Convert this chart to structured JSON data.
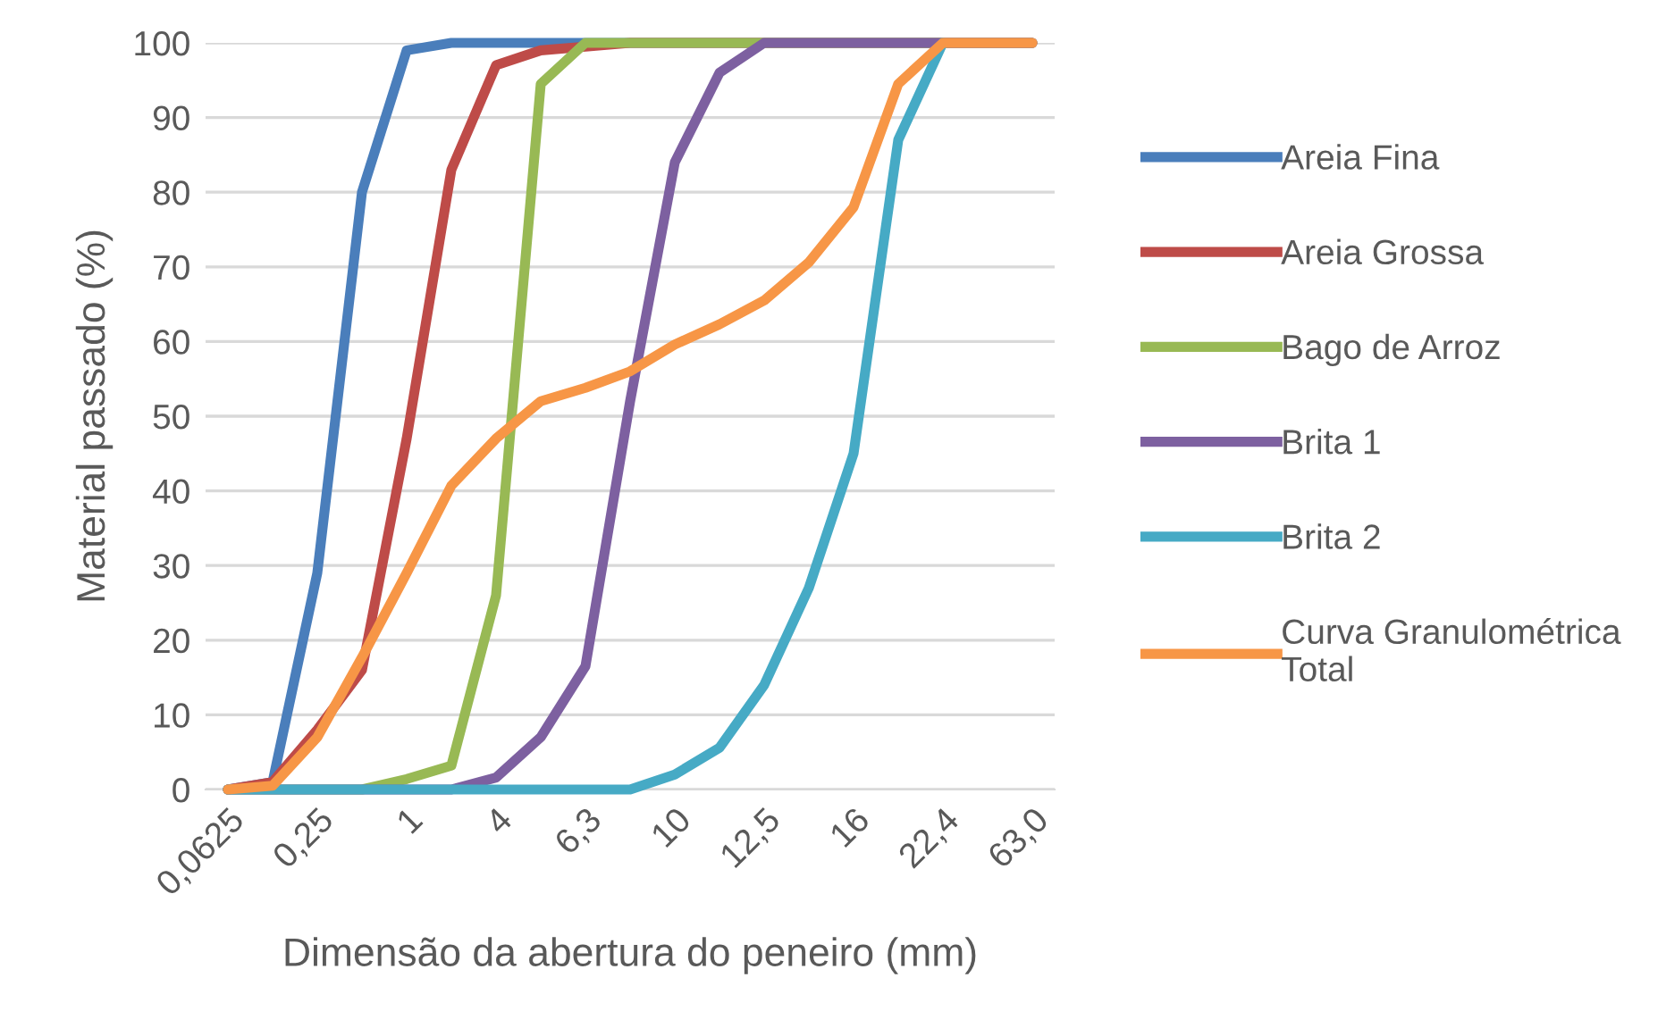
{
  "chart_data": {
    "type": "line",
    "xlabel": "Dimensão da abertura do peneiro (mm)",
    "ylabel": "Material passado (%)",
    "categories": [
      "0,0625",
      null,
      "0,25",
      null,
      "1",
      null,
      "4",
      null,
      "6,3",
      null,
      "10",
      null,
      "12,5",
      null,
      "16",
      null,
      "22,4",
      null,
      "63,0"
    ],
    "ylim": [
      0,
      100
    ],
    "yticks": [
      0,
      10,
      20,
      30,
      40,
      50,
      60,
      70,
      80,
      90,
      100
    ],
    "grid": "y",
    "legend": "right",
    "marker": "none",
    "line_style": "solid",
    "series": [
      {
        "name": "Areia Fina",
        "color": "#4a7ebb",
        "values": [
          0,
          1,
          29,
          80,
          99,
          100,
          100,
          100,
          100,
          100,
          100,
          100,
          100,
          100,
          100,
          100,
          100,
          null,
          null
        ]
      },
      {
        "name": "Areia Grossa",
        "color": "#be4b48",
        "values": [
          0,
          1,
          8,
          16,
          47,
          83,
          97,
          99,
          99.5,
          100,
          100,
          100,
          100,
          100,
          100,
          100,
          100,
          100,
          100
        ]
      },
      {
        "name": "Bago de Arroz",
        "color": "#98b954",
        "values": [
          0,
          0,
          0,
          0,
          1.4,
          3.2,
          26,
          94.5,
          100,
          100,
          100,
          100,
          100,
          100,
          100,
          100,
          100,
          100,
          100
        ]
      },
      {
        "name": "Brita 1",
        "color": "#7d60a0",
        "values": [
          0,
          0,
          0,
          0,
          0,
          0,
          1.6,
          7,
          16.5,
          52,
          84,
          96,
          100,
          100,
          100,
          100,
          100,
          100,
          100
        ]
      },
      {
        "name": "Brita 2",
        "color": "#46aac5",
        "values": [
          0,
          0,
          0,
          0,
          0,
          0,
          0,
          0,
          0,
          0,
          2,
          5.6,
          14,
          27,
          45,
          87,
          100,
          null,
          null
        ]
      },
      {
        "name": "Curva Granulométrica\nTotal",
        "color": "#f79646",
        "values": [
          0,
          0.5,
          7,
          17.7,
          29,
          40.7,
          47,
          52,
          53.8,
          56,
          59.6,
          62.3,
          65.5,
          70.6,
          78,
          94.5,
          100,
          100,
          100
        ]
      }
    ]
  }
}
